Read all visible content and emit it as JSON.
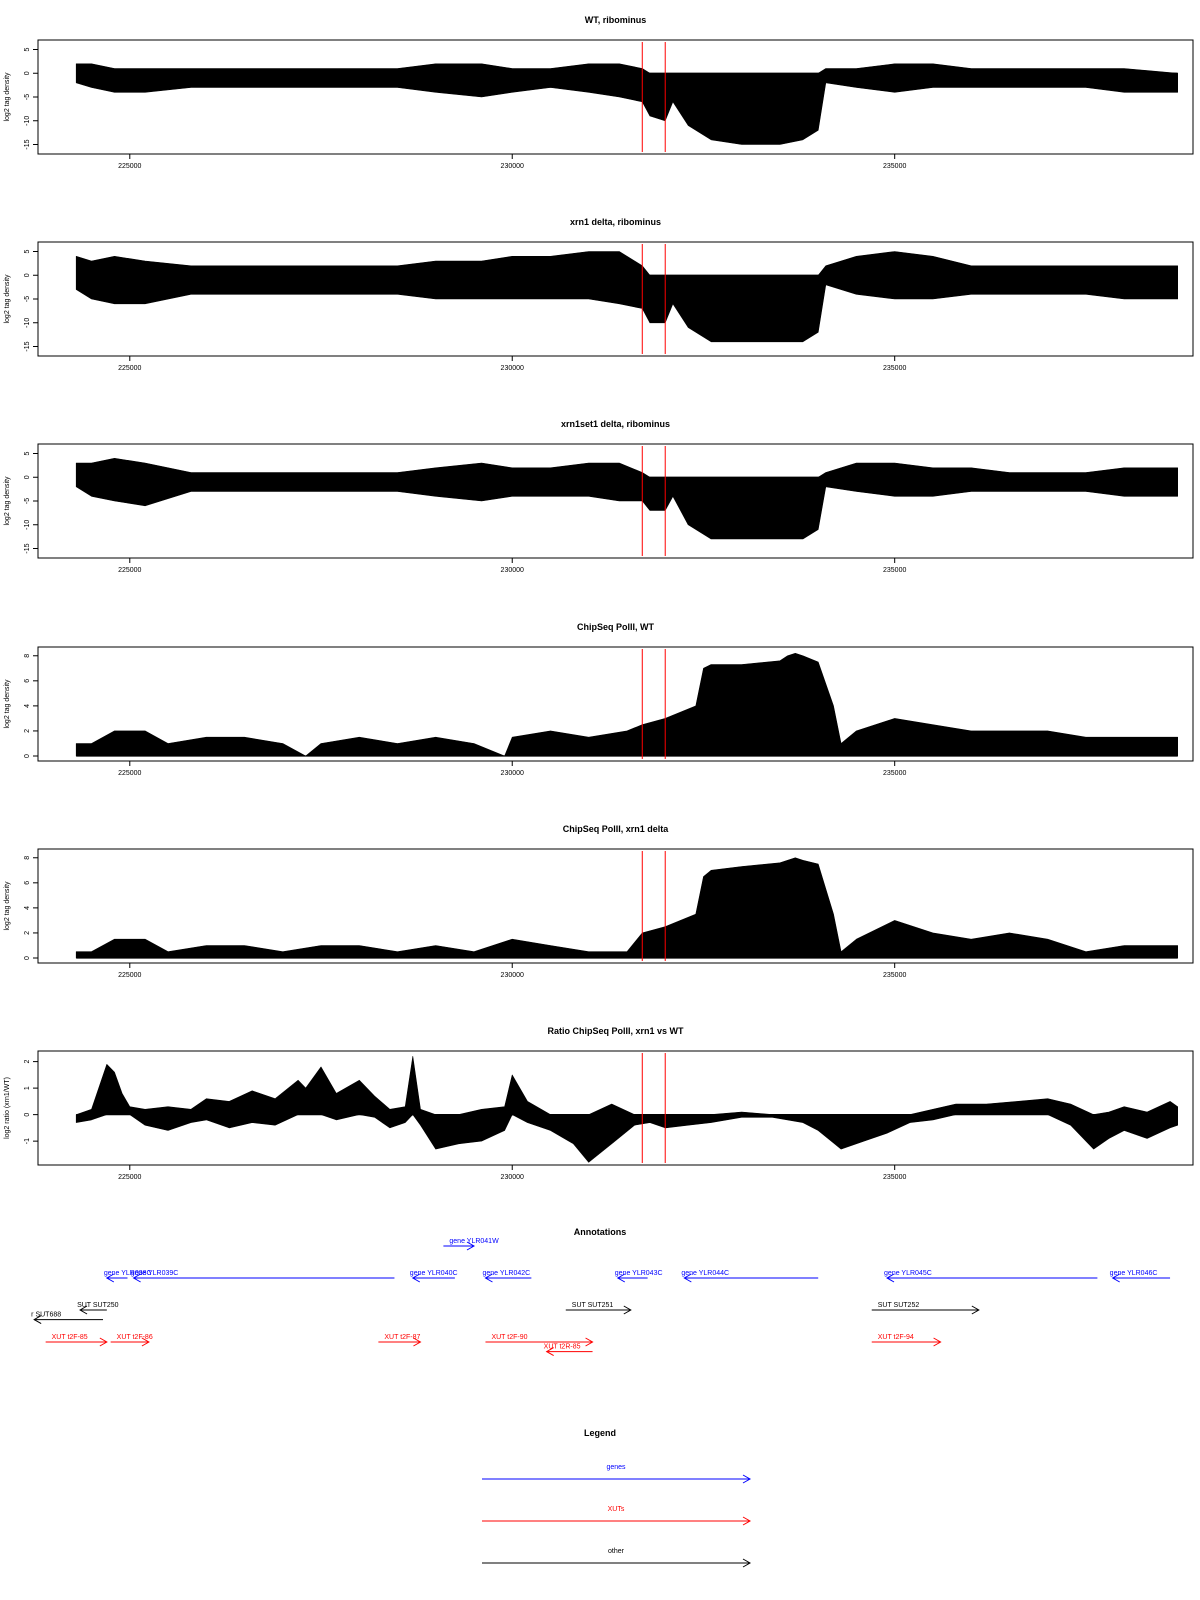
{
  "chart_data": [
    {
      "type": "area",
      "title": "WT, ribominus",
      "ylabel": "log2 tag density",
      "xlim": [
        223800,
        238900
      ],
      "ylim": [
        -17,
        7
      ],
      "yticks": [
        5,
        0,
        -5,
        -10,
        -15
      ],
      "xticks": [
        225000,
        230000,
        235000
      ],
      "markers": [
        231700,
        232000
      ],
      "series": [
        {
          "x": [
            224300,
            224500,
            224800,
            225200,
            225800,
            226500,
            227500,
            228500,
            229000,
            229600,
            230000,
            230500,
            231000,
            231400,
            231700,
            231800,
            232000,
            232100,
            232300,
            232600,
            233000,
            233500,
            233800,
            234000,
            234100,
            234500,
            235000,
            235500,
            236000,
            236500,
            237000,
            237500,
            238000,
            238700
          ],
          "top": [
            2,
            2,
            1,
            1,
            1,
            1,
            1,
            1,
            2,
            2,
            1,
            1,
            2,
            2,
            1,
            0,
            0,
            0,
            0,
            0,
            0,
            0,
            0,
            0,
            1,
            1,
            2,
            2,
            1,
            1,
            1,
            1,
            1,
            0
          ],
          "bottom": [
            -2,
            -3,
            -4,
            -4,
            -3,
            -3,
            -3,
            -3,
            -4,
            -5,
            -4,
            -3,
            -4,
            -5,
            -6,
            -9,
            -10,
            -6,
            -11,
            -14,
            -15,
            -15,
            -14,
            -12,
            -2,
            -3,
            -4,
            -3,
            -3,
            -3,
            -3,
            -3,
            -4,
            -4
          ]
        }
      ]
    },
    {
      "type": "area",
      "title": "xrn1 delta, ribominus",
      "ylabel": "log2 tag density",
      "xlim": [
        223800,
        238900
      ],
      "ylim": [
        -17,
        7
      ],
      "yticks": [
        5,
        0,
        -5,
        -10,
        -15
      ],
      "xticks": [
        225000,
        230000,
        235000
      ],
      "markers": [
        231700,
        232000
      ],
      "series": [
        {
          "x": [
            224300,
            224500,
            224800,
            225200,
            225800,
            226500,
            227500,
            228500,
            229000,
            229600,
            230000,
            230500,
            231000,
            231400,
            231700,
            231800,
            232000,
            232100,
            232300,
            232600,
            233000,
            233500,
            233800,
            234000,
            234100,
            234500,
            235000,
            235500,
            236000,
            236500,
            237000,
            237500,
            238000,
            238700
          ],
          "top": [
            4,
            3,
            4,
            3,
            2,
            2,
            2,
            2,
            3,
            3,
            4,
            4,
            5,
            5,
            2,
            0,
            0,
            0,
            0,
            0,
            0,
            0,
            0,
            0,
            2,
            4,
            5,
            4,
            2,
            2,
            2,
            2,
            2,
            2
          ],
          "bottom": [
            -3,
            -5,
            -6,
            -6,
            -4,
            -4,
            -4,
            -4,
            -5,
            -5,
            -5,
            -5,
            -5,
            -6,
            -7,
            -10,
            -10,
            -6,
            -11,
            -14,
            -14,
            -14,
            -14,
            -12,
            -2,
            -4,
            -5,
            -5,
            -4,
            -4,
            -4,
            -4,
            -5,
            -5
          ]
        }
      ]
    },
    {
      "type": "area",
      "title": "xrn1set1 delta, ribominus",
      "ylabel": "log2 tag density",
      "xlim": [
        223800,
        238900
      ],
      "ylim": [
        -17,
        7
      ],
      "yticks": [
        5,
        0,
        -5,
        -10,
        -15
      ],
      "xticks": [
        225000,
        230000,
        235000
      ],
      "markers": [
        231700,
        232000
      ],
      "series": [
        {
          "x": [
            224300,
            224500,
            224800,
            225200,
            225800,
            226500,
            227500,
            228500,
            229000,
            229600,
            230000,
            230500,
            231000,
            231400,
            231700,
            231800,
            232000,
            232100,
            232300,
            232600,
            233000,
            233500,
            233800,
            234000,
            234100,
            234500,
            235000,
            235500,
            236000,
            236500,
            237000,
            237500,
            238000,
            238700
          ],
          "top": [
            3,
            3,
            4,
            3,
            1,
            1,
            1,
            1,
            2,
            3,
            2,
            2,
            3,
            3,
            1,
            0,
            0,
            0,
            0,
            0,
            0,
            0,
            0,
            0,
            1,
            3,
            3,
            2,
            2,
            1,
            1,
            1,
            2,
            2
          ],
          "bottom": [
            -2,
            -4,
            -5,
            -6,
            -3,
            -3,
            -3,
            -3,
            -4,
            -5,
            -4,
            -4,
            -4,
            -5,
            -5,
            -7,
            -7,
            -4,
            -10,
            -13,
            -13,
            -13,
            -13,
            -11,
            -2,
            -3,
            -4,
            -4,
            -3,
            -3,
            -3,
            -3,
            -4,
            -4
          ]
        }
      ]
    },
    {
      "type": "area",
      "title": "ChipSeq PolII, WT",
      "ylabel": "log2 tag density",
      "xlim": [
        223800,
        238900
      ],
      "ylim": [
        -0.4,
        8.7
      ],
      "yticks": [
        0,
        2,
        4,
        6,
        8
      ],
      "xticks": [
        225000,
        230000,
        235000
      ],
      "markers": [
        231700,
        232000
      ],
      "series": [
        {
          "x": [
            224300,
            224500,
            224800,
            225200,
            225500,
            226000,
            226500,
            227000,
            227300,
            227500,
            228000,
            228500,
            229000,
            229500,
            229900,
            230000,
            230500,
            231000,
            231500,
            231700,
            232000,
            232200,
            232400,
            232500,
            232600,
            233000,
            233500,
            233600,
            233700,
            233800,
            234000,
            234200,
            234300,
            234500,
            235000,
            235500,
            236000,
            236500,
            237000,
            237500,
            238000,
            238700
          ],
          "top": [
            1,
            1,
            2,
            2,
            1,
            1.5,
            1.5,
            1,
            0,
            1,
            1.5,
            1,
            1.5,
            1,
            0,
            1.5,
            2,
            1.5,
            2,
            2.5,
            3,
            3.5,
            4,
            7,
            7.3,
            7.3,
            7.6,
            8,
            8.2,
            8,
            7.5,
            4,
            1,
            2,
            3,
            2.5,
            2,
            2,
            2,
            1.5,
            1.5,
            1.5
          ],
          "bottom": [
            0,
            0,
            0,
            0,
            0,
            0,
            0,
            0,
            0,
            0,
            0,
            0,
            0,
            0,
            0,
            0,
            0,
            0,
            0,
            0,
            0,
            0,
            0,
            0,
            0,
            0,
            0,
            0,
            0,
            0,
            0,
            0,
            0,
            0,
            0,
            0,
            0,
            0,
            0,
            0,
            0,
            0
          ]
        }
      ]
    },
    {
      "type": "area",
      "title": "ChipSeq PolII, xrn1 delta",
      "ylabel": "log2 tag density",
      "xlim": [
        223800,
        238900
      ],
      "ylim": [
        -0.4,
        8.7
      ],
      "yticks": [
        0,
        2,
        4,
        6,
        8
      ],
      "xticks": [
        225000,
        230000,
        235000
      ],
      "markers": [
        231700,
        232000
      ],
      "series": [
        {
          "x": [
            224300,
            224500,
            224800,
            225200,
            225500,
            226000,
            226500,
            227000,
            227500,
            228000,
            228500,
            229000,
            229500,
            230000,
            230500,
            231000,
            231500,
            231700,
            232000,
            232200,
            232400,
            232500,
            232600,
            233000,
            233500,
            233600,
            233700,
            233800,
            234000,
            234200,
            234300,
            234500,
            235000,
            235500,
            236000,
            236500,
            237000,
            237500,
            238000,
            238700
          ],
          "top": [
            0.5,
            0.5,
            1.5,
            1.5,
            0.5,
            1,
            1,
            0.5,
            1,
            1,
            0.5,
            1,
            0.5,
            1.5,
            1,
            0.5,
            0.5,
            2,
            2.5,
            3,
            3.5,
            6.5,
            7,
            7.3,
            7.6,
            7.8,
            8,
            7.8,
            7.5,
            3.5,
            0.5,
            1.5,
            3,
            2,
            1.5,
            2,
            1.5,
            0.5,
            1,
            1
          ],
          "bottom": [
            0,
            0,
            0,
            0,
            0,
            0,
            0,
            0,
            0,
            0,
            0,
            0,
            0,
            0,
            0,
            0,
            0,
            0,
            0,
            0,
            0,
            0,
            0,
            0,
            0,
            0,
            0,
            0,
            0,
            0,
            0,
            0,
            0,
            0,
            0,
            0,
            0,
            0,
            0,
            0
          ]
        }
      ]
    },
    {
      "type": "area",
      "title": "Ratio ChipSeq PolII, xrn1 vs WT",
      "ylabel": "log2 ratio (xrn1/WT)",
      "xlim": [
        223800,
        238900
      ],
      "ylim": [
        -1.9,
        2.4
      ],
      "yticks": [
        -1,
        0,
        1,
        2
      ],
      "xticks": [
        225000,
        230000,
        235000
      ],
      "markers": [
        231700,
        232000
      ],
      "series": [
        {
          "x": [
            224300,
            224500,
            224700,
            224800,
            224900,
            225000,
            225200,
            225500,
            225800,
            226000,
            226300,
            226600,
            226900,
            227200,
            227300,
            227500,
            227700,
            228000,
            228200,
            228400,
            228600,
            228700,
            228800,
            229000,
            229300,
            229600,
            229900,
            230000,
            230200,
            230500,
            230800,
            231000,
            231300,
            231600,
            231800,
            232000,
            232300,
            232600,
            233000,
            233400,
            233800,
            234000,
            234300,
            234600,
            234900,
            235200,
            235500,
            235800,
            236200,
            236600,
            237000,
            237300,
            237600,
            237800,
            238000,
            238300,
            238600,
            238700
          ],
          "top": [
            0,
            0.2,
            1.9,
            1.6,
            0.8,
            0.3,
            0.2,
            0.3,
            0.2,
            0.6,
            0.5,
            0.9,
            0.6,
            1.3,
            1.0,
            1.8,
            0.8,
            1.3,
            0.7,
            0.2,
            0.3,
            2.2,
            0.2,
            0,
            0,
            0.2,
            0.3,
            1.5,
            0.5,
            0,
            0,
            0,
            0.4,
            0,
            0,
            0,
            0,
            0,
            0.1,
            0,
            0,
            0,
            0,
            0,
            0,
            0,
            0.2,
            0.4,
            0.4,
            0.5,
            0.6,
            0.4,
            0,
            0.1,
            0.3,
            0.1,
            0.5,
            0.3
          ],
          "bottom": [
            -0.3,
            -0.2,
            0,
            0,
            0,
            0,
            -0.4,
            -0.6,
            -0.3,
            -0.2,
            -0.5,
            -0.3,
            -0.4,
            0,
            0,
            0,
            -0.2,
            0,
            -0.1,
            -0.5,
            -0.3,
            0,
            -0.4,
            -1.3,
            -1.1,
            -1.0,
            -0.6,
            0,
            -0.3,
            -0.6,
            -1.1,
            -1.8,
            -1.1,
            -0.4,
            -0.3,
            -0.5,
            -0.4,
            -0.3,
            -0.1,
            -0.1,
            -0.3,
            -0.6,
            -1.3,
            -1.0,
            -0.7,
            -0.3,
            -0.2,
            0,
            0,
            0,
            0,
            -0.4,
            -1.3,
            -0.9,
            -0.6,
            -0.9,
            -0.5,
            -0.4
          ]
        }
      ]
    }
  ],
  "annotations": {
    "title": "Annotations",
    "xlim": [
      223800,
      238900
    ],
    "colors": {
      "genes": "#0000ff",
      "XUTs": "#ff0000",
      "other": "#000000"
    },
    "features": [
      {
        "label": "gene YLR038C",
        "kind": "genes",
        "x1": 224700,
        "x2": 224970,
        "dir": "left",
        "row": 0
      },
      {
        "label": "gene YLR039C",
        "kind": "genes",
        "x1": 225050,
        "x2": 228460,
        "dir": "left",
        "row": 0
      },
      {
        "label": "gene YLR040C",
        "kind": "genes",
        "x1": 228700,
        "x2": 229250,
        "dir": "left",
        "row": 0
      },
      {
        "label": "gene YLR041W",
        "kind": "genes",
        "x1": 229100,
        "x2": 229500,
        "dir": "right",
        "row": -1
      },
      {
        "label": "gene YLR042C",
        "kind": "genes",
        "x1": 229650,
        "x2": 230250,
        "dir": "left",
        "row": 0
      },
      {
        "label": "gene YLR043C",
        "kind": "genes",
        "x1": 231380,
        "x2": 231770,
        "dir": "left",
        "row": 0
      },
      {
        "label": "gene YLR044C",
        "kind": "genes",
        "x1": 232250,
        "x2": 234000,
        "dir": "left",
        "row": 0
      },
      {
        "label": "gene YLR045C",
        "kind": "genes",
        "x1": 234900,
        "x2": 237650,
        "dir": "left",
        "row": 0
      },
      {
        "label": "gene YLR046C",
        "kind": "genes",
        "x1": 237850,
        "x2": 238600,
        "dir": "left",
        "row": 0
      },
      {
        "label": "",
        "kind": "genes",
        "x1": 239150,
        "x2": 239800,
        "dir": "left",
        "row": 0
      },
      {
        "label": "SUT SUT250",
        "kind": "other",
        "x1": 224350,
        "x2": 224700,
        "dir": "left",
        "row": 1
      },
      {
        "label": "r SUT688",
        "kind": "other",
        "x1": 223750,
        "x2": 224650,
        "dir": "left",
        "row": 1.3
      },
      {
        "label": "SUT SUT251",
        "kind": "other",
        "x1": 230700,
        "x2": 231550,
        "dir": "right",
        "row": 1
      },
      {
        "label": "SUT SUT252",
        "kind": "other",
        "x1": 234700,
        "x2": 236100,
        "dir": "right",
        "row": 1
      },
      {
        "label": "XUT t2F-85",
        "kind": "XUTs",
        "x1": 223900,
        "x2": 224700,
        "dir": "right",
        "row": 2
      },
      {
        "label": "XUT t2F-86",
        "kind": "XUTs",
        "x1": 224750,
        "x2": 225250,
        "dir": "right",
        "row": 2
      },
      {
        "label": "XUT t2F-87",
        "kind": "XUTs",
        "x1": 228250,
        "x2": 228800,
        "dir": "right",
        "row": 2
      },
      {
        "label": "XUT t2F-90",
        "kind": "XUTs",
        "x1": 229650,
        "x2": 231050,
        "dir": "right",
        "row": 2
      },
      {
        "label": "XUT t2R-85",
        "kind": "XUTs",
        "x1": 230450,
        "x2": 231050,
        "dir": "left",
        "row": 2.3
      },
      {
        "label": "XUT t2F-94",
        "kind": "XUTs",
        "x1": 234700,
        "x2": 235600,
        "dir": "right",
        "row": 2
      }
    ]
  },
  "legend": {
    "title": "Legend",
    "items": [
      {
        "label": "genes",
        "color": "#0000ff"
      },
      {
        "label": "XUTs",
        "color": "#ff0000"
      },
      {
        "label": "other",
        "color": "#000000"
      }
    ]
  }
}
